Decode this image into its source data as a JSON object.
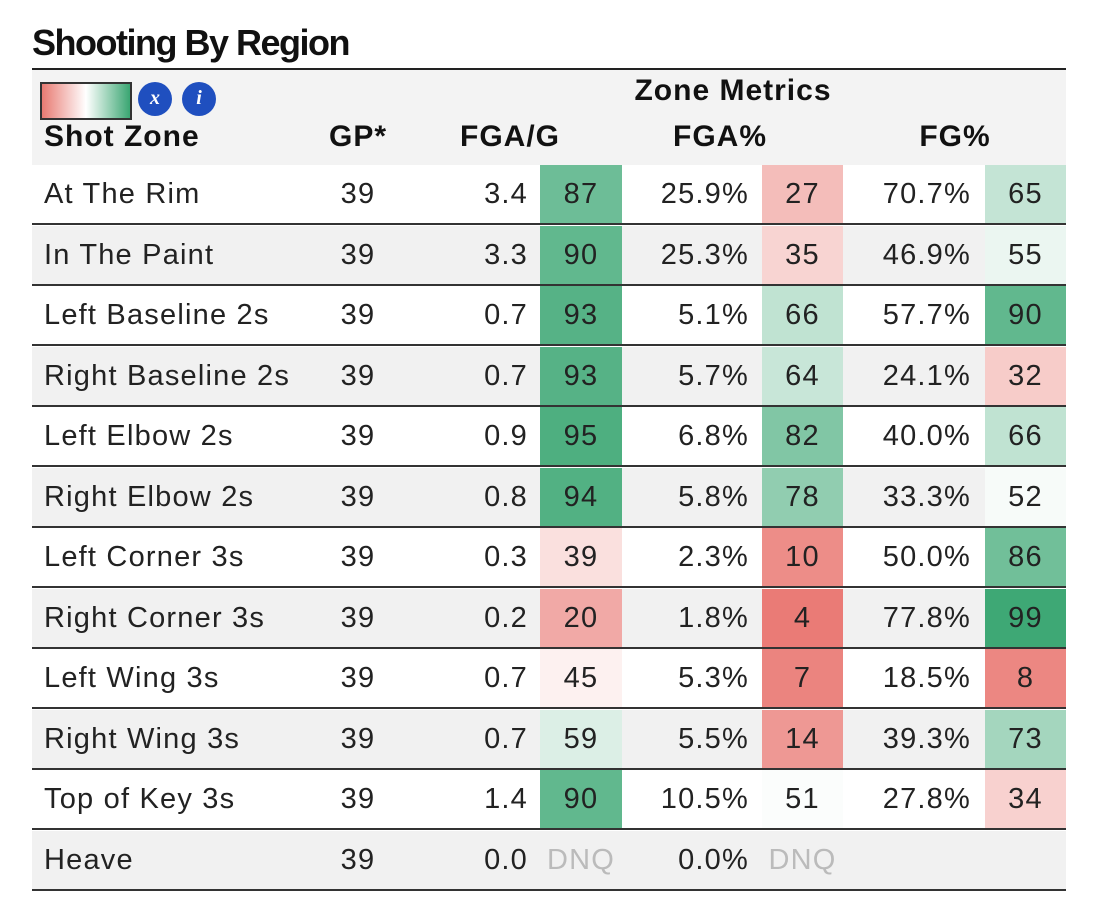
{
  "title": "Shooting By Region",
  "legend_icons": [
    "x",
    "i"
  ],
  "group_header": "Zone Metrics",
  "columns": [
    "Shot Zone",
    "GP*",
    "FGA/G",
    "FGA%",
    "FG%"
  ],
  "rows": [
    [
      "At The Rim",
      "39",
      "3.4",
      "87",
      "25.9%",
      "27",
      "70.7%",
      "65"
    ],
    [
      "In The Paint",
      "39",
      "3.3",
      "90",
      "25.3%",
      "35",
      "46.9%",
      "55"
    ],
    [
      "Left Baseline 2s",
      "39",
      "0.7",
      "93",
      "5.1%",
      "66",
      "57.7%",
      "90"
    ],
    [
      "Right Baseline 2s",
      "39",
      "0.7",
      "93",
      "5.7%",
      "64",
      "24.1%",
      "32"
    ],
    [
      "Left Elbow 2s",
      "39",
      "0.9",
      "95",
      "6.8%",
      "82",
      "40.0%",
      "66"
    ],
    [
      "Right Elbow 2s",
      "39",
      "0.8",
      "94",
      "5.8%",
      "78",
      "33.3%",
      "52"
    ],
    [
      "Left Corner 3s",
      "39",
      "0.3",
      "39",
      "2.3%",
      "10",
      "50.0%",
      "86"
    ],
    [
      "Right Corner 3s",
      "39",
      "0.2",
      "20",
      "1.8%",
      "4",
      "77.8%",
      "99"
    ],
    [
      "Left Wing 3s",
      "39",
      "0.7",
      "45",
      "5.3%",
      "7",
      "18.5%",
      "8"
    ],
    [
      "Right Wing 3s",
      "39",
      "0.7",
      "59",
      "5.5%",
      "14",
      "39.3%",
      "73"
    ],
    [
      "Top of Key 3s",
      "39",
      "1.4",
      "90",
      "10.5%",
      "51",
      "27.8%",
      "34"
    ],
    [
      "Heave",
      "39",
      "0.0",
      "DNQ",
      "0.0%",
      "DNQ",
      null,
      null
    ]
  ]
}
